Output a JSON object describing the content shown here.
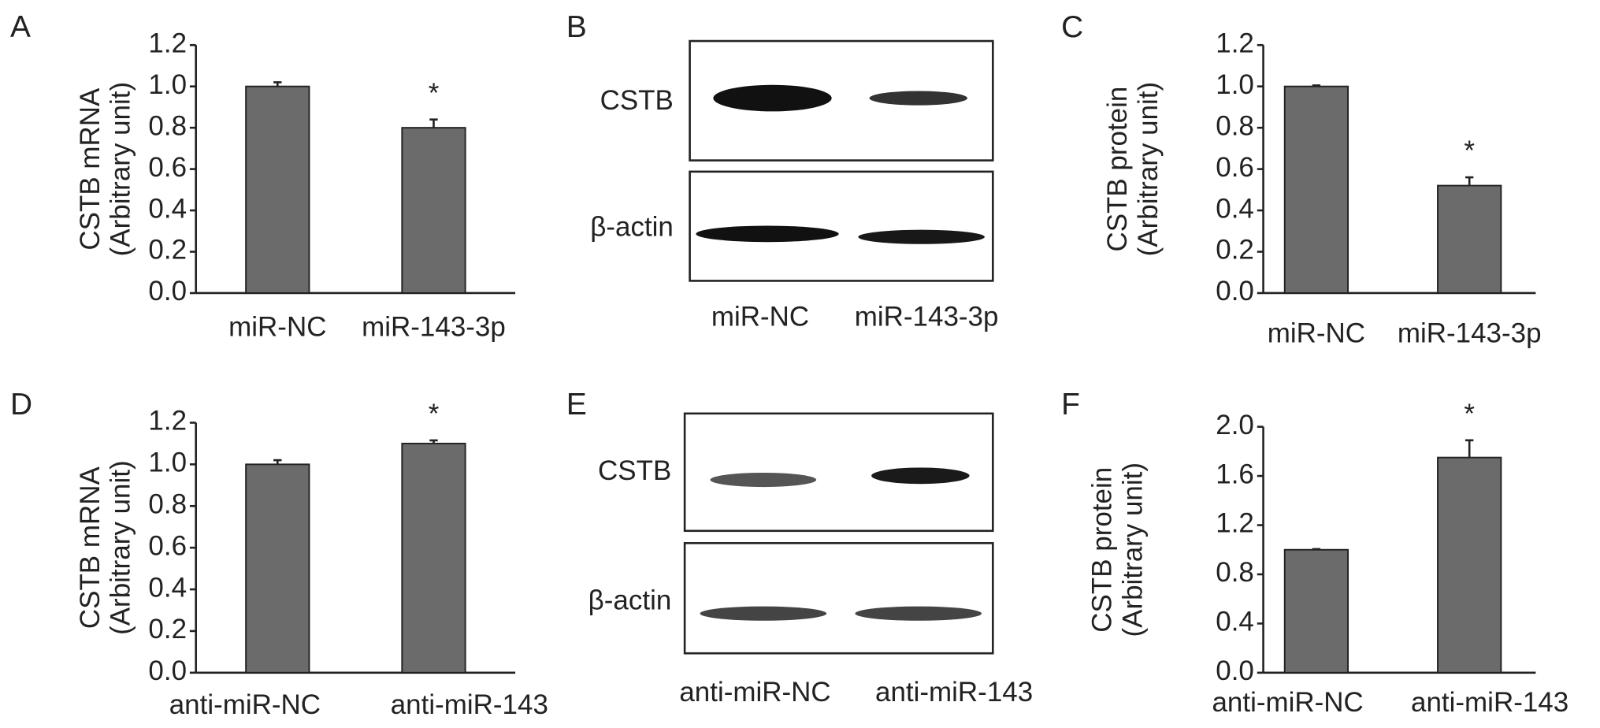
{
  "chart_data": [
    {
      "type": "bar",
      "panel": "A",
      "ylabel": [
        "CSTB mRNA",
        "(Arbitrary unit)"
      ],
      "categories": [
        "miR-NC",
        "miR-143-3p"
      ],
      "values": [
        1.0,
        0.8
      ],
      "errors": [
        0.02,
        0.04
      ],
      "color": "#6b6b6b",
      "ylim": [
        0,
        1.2
      ],
      "yticks": [
        {
          "value": 0,
          "label": "0.0"
        },
        0.2,
        0.4,
        0.6,
        0.8,
        {
          "value": 1,
          "label": "1.0"
        },
        1.2
      ],
      "annotations": [
        {
          "text": "*",
          "x": "miR-143-3p"
        }
      ]
    },
    {
      "type": "bar",
      "panel": "C",
      "ylabel": [
        "CSTB protein",
        "(Arbitrary unit)"
      ],
      "categories": [
        "miR-NC",
        "miR-143-3p"
      ],
      "values": [
        1.0,
        0.52
      ],
      "errors": [
        0.005,
        0.04
      ],
      "color": "#6b6b6b",
      "ylim": [
        0,
        1.2
      ],
      "yticks": [
        {
          "value": 0,
          "label": "0.0"
        },
        0.2,
        0.4,
        0.6,
        0.8,
        {
          "value": 1,
          "label": "1.0"
        },
        1.2
      ],
      "annotations": [
        {
          "text": "*",
          "x": "miR-143-3p"
        }
      ]
    },
    {
      "type": "bar",
      "panel": "D",
      "ylabel": [
        "CSTB mRNA",
        "(Arbitrary unit)"
      ],
      "categories": [
        "anti-miR-NC",
        "anti-miR-143"
      ],
      "values": [
        1.0,
        1.1
      ],
      "errors": [
        0.02,
        0.015
      ],
      "color": "#6b6b6b",
      "ylim": [
        0,
        1.2
      ],
      "yticks": [
        {
          "value": 0,
          "label": "0.0"
        },
        0.2,
        0.4,
        0.6,
        0.8,
        {
          "value": 1,
          "label": "1.0"
        },
        1.2
      ],
      "annotations": [
        {
          "text": "*",
          "x": "anti-miR-143"
        }
      ]
    },
    {
      "type": "bar",
      "panel": "F",
      "ylabel": [
        "CSTB protein",
        "(Arbitrary unit)"
      ],
      "categories": [
        "anti-miR-NC",
        "anti-miR-143"
      ],
      "values": [
        1.0,
        1.75
      ],
      "errors": [
        0.005,
        0.14
      ],
      "color": "#6b6b6b",
      "ylim": [
        0,
        2
      ],
      "yticks": [
        {
          "value": 0,
          "label": "0.0"
        },
        0.4,
        0.8,
        1.2,
        1.6,
        {
          "value": 2,
          "label": "2.0"
        }
      ],
      "annotations": [
        {
          "text": "*",
          "x": "anti-miR-143"
        }
      ]
    }
  ],
  "blots": [
    {
      "panel": "B",
      "rows": [
        "CSTB",
        "β-actin"
      ],
      "lanes": [
        "miR-NC",
        "miR-143-3p"
      ]
    },
    {
      "panel": "E",
      "rows": [
        "CSTB",
        "β-actin"
      ],
      "lanes": [
        "anti-miR-NC",
        "anti-miR-143"
      ]
    }
  ]
}
